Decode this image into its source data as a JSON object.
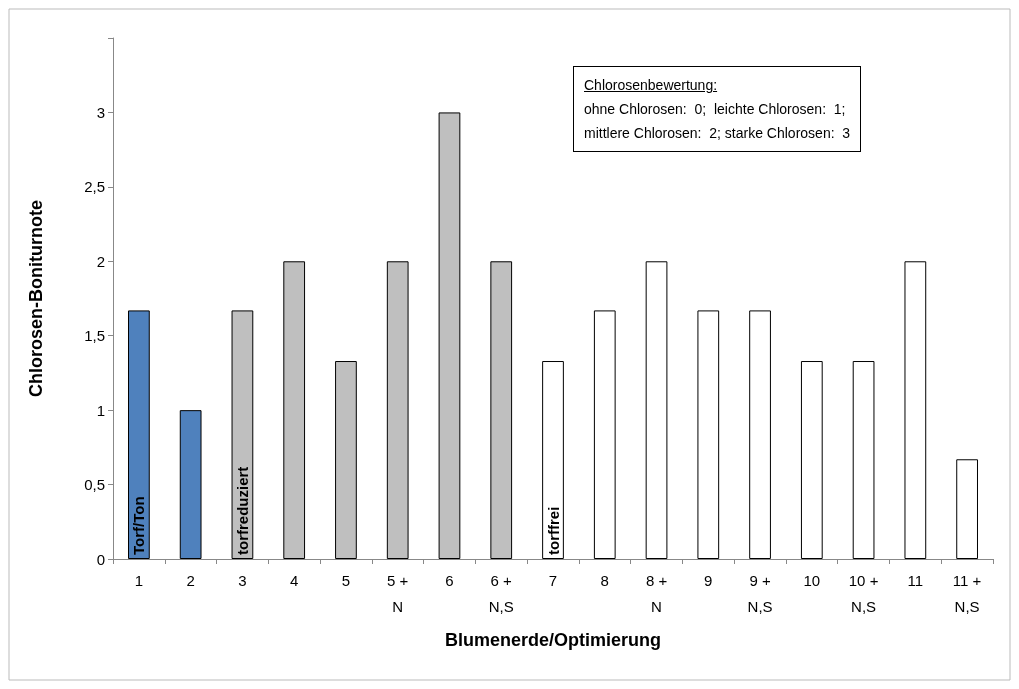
{
  "chart_data": {
    "type": "bar",
    "xlabel": "Blumenerde/Optimierung",
    "ylabel": "Chlorosen-Boniturnote",
    "categories": [
      "1",
      "2",
      "3",
      "4",
      "5",
      "5 +\nN",
      "6",
      "6 +\nN,S",
      "7",
      "8",
      "8 +\nN",
      "9",
      "9 +\nN,S",
      "10",
      "10 +\nN,S",
      "11",
      "11 +\nN,S"
    ],
    "values": [
      1.67,
      1,
      1.67,
      2,
      1.33,
      2,
      3,
      2,
      1.33,
      1.67,
      2,
      1.67,
      1.67,
      1.33,
      1.33,
      2,
      0.67
    ],
    "colors": [
      "#4f81bd",
      "#4f81bd",
      "#bfbfbf",
      "#bfbfbf",
      "#bfbfbf",
      "#bfbfbf",
      "#bfbfbf",
      "#bfbfbf",
      "#ffffff",
      "#ffffff",
      "#ffffff",
      "#ffffff",
      "#ffffff",
      "#ffffff",
      "#ffffff",
      "#ffffff",
      "#ffffff"
    ],
    "ylim": [
      0,
      3.5
    ],
    "yticks": [
      {
        "value": 0,
        "label": "0"
      },
      {
        "value": 0.5,
        "label": "0,5"
      },
      {
        "value": 1,
        "label": "1"
      },
      {
        "value": 1.5,
        "label": "1,5"
      },
      {
        "value": 2,
        "label": "2"
      },
      {
        "value": 2.5,
        "label": "2,5"
      },
      {
        "value": 3,
        "label": "3"
      },
      {
        "value": 3.5,
        "label": null
      }
    ],
    "grid": false,
    "annotations": [
      {
        "text": "Torf/Ton",
        "x": "1",
        "y": 0
      },
      {
        "text": "torfreduziert",
        "x": "3",
        "y": 0
      },
      {
        "text": "torffrei",
        "x": "7",
        "y": 0
      },
      "Chlorosenbewertung:\nohne Chlorosen:  0;  leichte Chlorosen:  1;\nmittlere Chlorosen:  2; starke Chlorosen:  3"
    ]
  }
}
